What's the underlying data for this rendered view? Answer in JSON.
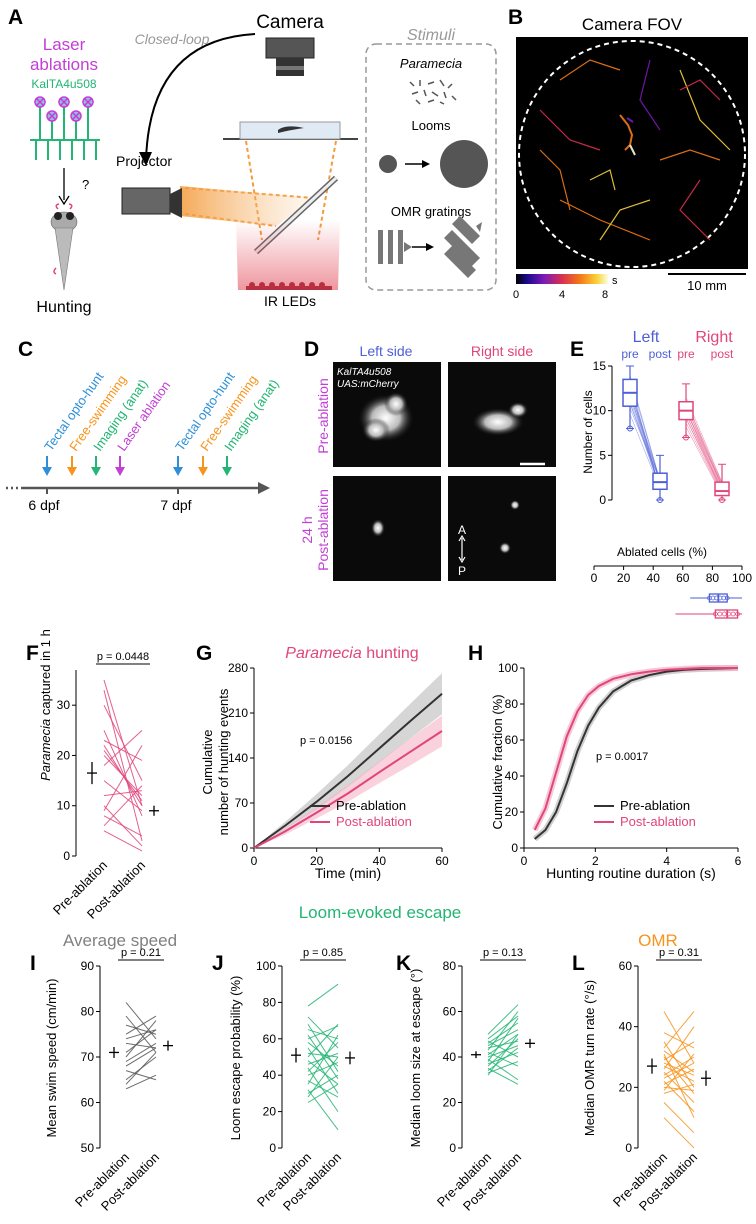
{
  "panels": {
    "A": {
      "letter": "A",
      "laser": [
        "Laser",
        "ablations"
      ],
      "line": "KalTA4u508",
      "question": "?",
      "hunting": "Hunting",
      "closed_loop": "Closed-loop",
      "camera": "Camera",
      "projector": "Projector",
      "ir": "IR LEDs",
      "stimuli": "Stimuli",
      "paramecia": "Paramecia",
      "looms": "Looms",
      "omr": "OMR gratings",
      "colors": {
        "laser": "#c23fd6",
        "line": "#22b573",
        "stim": "#999999"
      }
    },
    "B": {
      "letter": "B",
      "title": "Camera FOV",
      "cbar_ticks": [
        "0",
        "4",
        "8"
      ],
      "cbar_unit": "s",
      "scale": "10 mm"
    },
    "C": {
      "letter": "C",
      "day1": "6 dpf",
      "day2": "7 dpf",
      "events": [
        {
          "label": "Tectal opto-hunt",
          "color": "#2e8fd6"
        },
        {
          "label": "Free-swimming",
          "color": "#f7941d"
        },
        {
          "label": "Imaging (anat)",
          "color": "#22b573"
        },
        {
          "label": "Laser ablation",
          "color": "#c23fd6"
        },
        {
          "label": "Tectal opto-hunt",
          "color": "#2e8fd6"
        },
        {
          "label": "Free-swimming",
          "color": "#f7941d"
        },
        {
          "label": "Imaging (anat)",
          "color": "#22b573"
        }
      ]
    },
    "D": {
      "letter": "D",
      "left": "Left side",
      "right": "Right side",
      "line1": "KalTA4u508",
      "line2": "UAS:mCherry",
      "pre": "Pre-ablation",
      "post": [
        "24 h",
        "Post-ablation"
      ],
      "axis_a": "A",
      "axis_p": "P"
    },
    "E": {
      "letter": "E",
      "left": "Left",
      "right": "Right",
      "pre": "pre",
      "post": "post",
      "ylabel": "Number of cells",
      "yticks": [
        "0",
        "5",
        "10",
        "15"
      ],
      "ablated_title": "Ablated cells (%)",
      "ablated_ticks": [
        "0",
        "20",
        "40",
        "60",
        "80",
        "100"
      ],
      "left_color": "#4d5fd6",
      "right_color": "#e0457b"
    },
    "F": {
      "letter": "F",
      "p": "p = 0.0448",
      "ylabel_it": "Paramecia",
      "ylabel_rest": " captured in 1 h",
      "yticks": [
        "0",
        "10",
        "20",
        "30"
      ],
      "xlabels": [
        "Pre-ablation",
        "Post-ablation"
      ]
    },
    "G": {
      "letter": "G",
      "title_it": "Paramecia",
      "title_rest": " hunting",
      "p": "p = 0.0156",
      "ylabel1": "Cumulative",
      "ylabel2": "number of hunting events",
      "xlabel": "Time (min)",
      "yticks": [
        "0",
        "70",
        "140",
        "210",
        "280"
      ],
      "xticks": [
        "0",
        "20",
        "40",
        "60"
      ],
      "legend": [
        "Pre-ablation",
        "Post-ablation"
      ]
    },
    "H": {
      "letter": "H",
      "p": "p = 0.0017",
      "ylabel": "Cumulative fraction (%)",
      "xlabel": "Hunting routine duration (s)",
      "yticks": [
        "0",
        "20",
        "40",
        "60",
        "80",
        "100"
      ],
      "xticks": [
        "0",
        "2",
        "4",
        "6"
      ],
      "legend": [
        "Pre-ablation",
        "Post-ablation"
      ]
    },
    "I": {
      "letter": "I",
      "title": "Average speed",
      "p": "p = 0.21",
      "ylabel": "Mean swim speed (cm/min)",
      "yticks": [
        "50",
        "60",
        "70",
        "80",
        "90"
      ],
      "xlabels": [
        "Pre-ablation",
        "Post-ablation"
      ]
    },
    "J": {
      "letter": "J",
      "p": "p = 0.85",
      "ylabel": "Loom escape probability (%)",
      "yticks": [
        "0",
        "20",
        "40",
        "60",
        "80",
        "100"
      ],
      "xlabels": [
        "Pre-ablation",
        "Post-ablation"
      ]
    },
    "K": {
      "letter": "K",
      "p": "p = 0.13",
      "ylabel": "Median loom size at escape (°)",
      "yticks": [
        "0",
        "20",
        "40",
        "60",
        "80"
      ],
      "xlabels": [
        "Pre-ablation",
        "Post-ablation"
      ]
    },
    "L": {
      "letter": "L",
      "title": "OMR",
      "p": "p = 0.31",
      "ylabel": "Median OMR turn rate (°/s)",
      "yticks": [
        "0",
        "20",
        "40",
        "60"
      ],
      "xlabels": [
        "Pre-ablation",
        "Post-ablation"
      ]
    },
    "JK_title": "Loom-evoked escape"
  },
  "chart_data": [
    {
      "id": "E-cells",
      "type": "box",
      "ylabel": "Number of cells",
      "ylim": [
        0,
        15
      ],
      "groups": [
        {
          "side": "Left",
          "cond": "pre",
          "min": 8,
          "q1": 10.5,
          "median": 12,
          "q3": 13.5,
          "max": 15
        },
        {
          "side": "Left",
          "cond": "post",
          "min": 0,
          "q1": 1.2,
          "median": 2,
          "q3": 3,
          "max": 5
        },
        {
          "side": "Right",
          "cond": "pre",
          "min": 7,
          "q1": 9,
          "median": 10,
          "q3": 11,
          "max": 13
        },
        {
          "side": "Right",
          "cond": "post",
          "min": 0,
          "q1": 0.5,
          "median": 1,
          "q3": 2,
          "max": 4
        }
      ]
    },
    {
      "id": "E-ablated",
      "type": "box",
      "xlabel": "Ablated cells (%)",
      "xlim": [
        0,
        100
      ],
      "groups": [
        {
          "side": "Left",
          "min": 65,
          "q1": 78,
          "median": 84,
          "q3": 90,
          "max": 100
        },
        {
          "side": "Right",
          "min": 55,
          "q1": 82,
          "median": 90,
          "q3": 97,
          "max": 100
        }
      ]
    },
    {
      "id": "F",
      "type": "paired",
      "ylabel": "Paramecia captured in 1 h",
      "ylim": [
        0,
        37
      ],
      "pre_mean": 16.5,
      "pre_sem": 2.2,
      "post_mean": 9,
      "post_sem": 1.0,
      "pairs": [
        [
          35,
          10
        ],
        [
          33,
          3
        ],
        [
          30,
          15
        ],
        [
          25,
          8
        ],
        [
          23,
          19
        ],
        [
          22,
          10
        ],
        [
          21,
          11
        ],
        [
          20,
          12
        ],
        [
          18,
          25
        ],
        [
          15,
          9
        ],
        [
          12,
          13
        ],
        [
          10,
          2
        ],
        [
          9,
          22
        ],
        [
          8,
          4
        ],
        [
          6,
          14
        ],
        [
          5,
          1
        ]
      ]
    },
    {
      "id": "G",
      "type": "line",
      "xlabel": "Time (min)",
      "ylabel": "Cumulative number of hunting events",
      "xlim": [
        0,
        60
      ],
      "ylim": [
        0,
        280
      ],
      "x": [
        0,
        10,
        20,
        30,
        40,
        50,
        60
      ],
      "series": [
        {
          "name": "Pre-ablation",
          "values": [
            0,
            35,
            72,
            112,
            155,
            198,
            240
          ],
          "band": [
            0,
            6,
            12,
            17,
            22,
            27,
            32
          ]
        },
        {
          "name": "Post-ablation",
          "values": [
            0,
            26,
            55,
            85,
            118,
            150,
            182
          ],
          "band": [
            0,
            5,
            9,
            13,
            17,
            21,
            24
          ]
        }
      ]
    },
    {
      "id": "H",
      "type": "line",
      "xlabel": "Hunting routine duration (s)",
      "ylabel": "Cumulative fraction (%)",
      "xlim": [
        0,
        6
      ],
      "ylim": [
        0,
        100
      ],
      "x": [
        0.3,
        0.6,
        0.9,
        1.2,
        1.5,
        1.8,
        2.1,
        2.5,
        3,
        3.5,
        4,
        4.5,
        5,
        6
      ],
      "series": [
        {
          "name": "Pre-ablation",
          "values": [
            5,
            10,
            20,
            36,
            54,
            68,
            78,
            87,
            93,
            96,
            98,
            99,
            99.5,
            100
          ]
        },
        {
          "name": "Post-ablation",
          "values": [
            10,
            22,
            42,
            62,
            76,
            85,
            90,
            94,
            96.5,
            98,
            99,
            99.5,
            100,
            100
          ]
        }
      ]
    },
    {
      "id": "I",
      "type": "paired",
      "ylabel": "Mean swim speed (cm/min)",
      "ylim": [
        50,
        90
      ],
      "pre_mean": 71,
      "pre_sem": 1.2,
      "post_mean": 72.5,
      "post_sem": 1.1,
      "pairs": [
        [
          82,
          74
        ],
        [
          79,
          71
        ],
        [
          77,
          75
        ],
        [
          75,
          79
        ],
        [
          74,
          76
        ],
        [
          73,
          72
        ],
        [
          71,
          76
        ],
        [
          70,
          78
        ],
        [
          69,
          73
        ],
        [
          68,
          72
        ],
        [
          67,
          65
        ],
        [
          65,
          70
        ],
        [
          64,
          71
        ],
        [
          63,
          66
        ]
      ]
    },
    {
      "id": "J",
      "type": "paired",
      "ylabel": "Loom escape probability (%)",
      "ylim": [
        0,
        100
      ],
      "pre_mean": 51,
      "pre_sem": 4,
      "post_mean": 49.5,
      "post_sem": 3.5,
      "pairs": [
        [
          78,
          90
        ],
        [
          72,
          55
        ],
        [
          68,
          42
        ],
        [
          65,
          60
        ],
        [
          62,
          38
        ],
        [
          60,
          67
        ],
        [
          58,
          45
        ],
        [
          55,
          30
        ],
        [
          52,
          50
        ],
        [
          50,
          68
        ],
        [
          48,
          35
        ],
        [
          46,
          52
        ],
        [
          44,
          20
        ],
        [
          42,
          58
        ],
        [
          40,
          47
        ],
        [
          37,
          28
        ],
        [
          35,
          62
        ],
        [
          32,
          10
        ],
        [
          30,
          40
        ],
        [
          28,
          50
        ],
        [
          25,
          35
        ]
      ]
    },
    {
      "id": "K",
      "type": "paired",
      "ylabel": "Median loom size at escape (°)",
      "ylim": [
        0,
        80
      ],
      "pre_mean": 41,
      "pre_sem": 1.5,
      "post_mean": 46,
      "post_sem": 2,
      "pairs": [
        [
          50,
          63
        ],
        [
          48,
          58
        ],
        [
          47,
          40
        ],
        [
          46,
          55
        ],
        [
          45,
          52
        ],
        [
          44,
          47
        ],
        [
          43,
          60
        ],
        [
          42,
          36
        ],
        [
          41,
          50
        ],
        [
          40,
          45
        ],
        [
          39,
          30
        ],
        [
          38,
          57
        ],
        [
          37,
          42
        ],
        [
          36,
          48
        ],
        [
          35,
          28
        ],
        [
          34,
          44
        ],
        [
          33,
          38
        ],
        [
          32,
          50
        ]
      ]
    },
    {
      "id": "L",
      "type": "paired",
      "ylabel": "Median OMR turn rate (°/s)",
      "ylim": [
        0,
        60
      ],
      "pre_mean": 27,
      "pre_sem": 2.5,
      "post_mean": 23,
      "post_sem": 2.5,
      "pairs": [
        [
          45,
          28
        ],
        [
          38,
          33
        ],
        [
          35,
          20
        ],
        [
          33,
          45
        ],
        [
          32,
          25
        ],
        [
          31,
          10
        ],
        [
          30,
          18
        ],
        [
          29,
          35
        ],
        [
          28,
          24
        ],
        [
          27,
          22
        ],
        [
          26,
          40
        ],
        [
          25,
          15
        ],
        [
          24,
          30
        ],
        [
          23,
          28
        ],
        [
          22,
          12
        ],
        [
          21,
          26
        ],
        [
          20,
          19
        ],
        [
          19,
          31
        ],
        [
          18,
          21
        ],
        [
          15,
          5
        ],
        [
          10,
          0
        ]
      ]
    }
  ]
}
